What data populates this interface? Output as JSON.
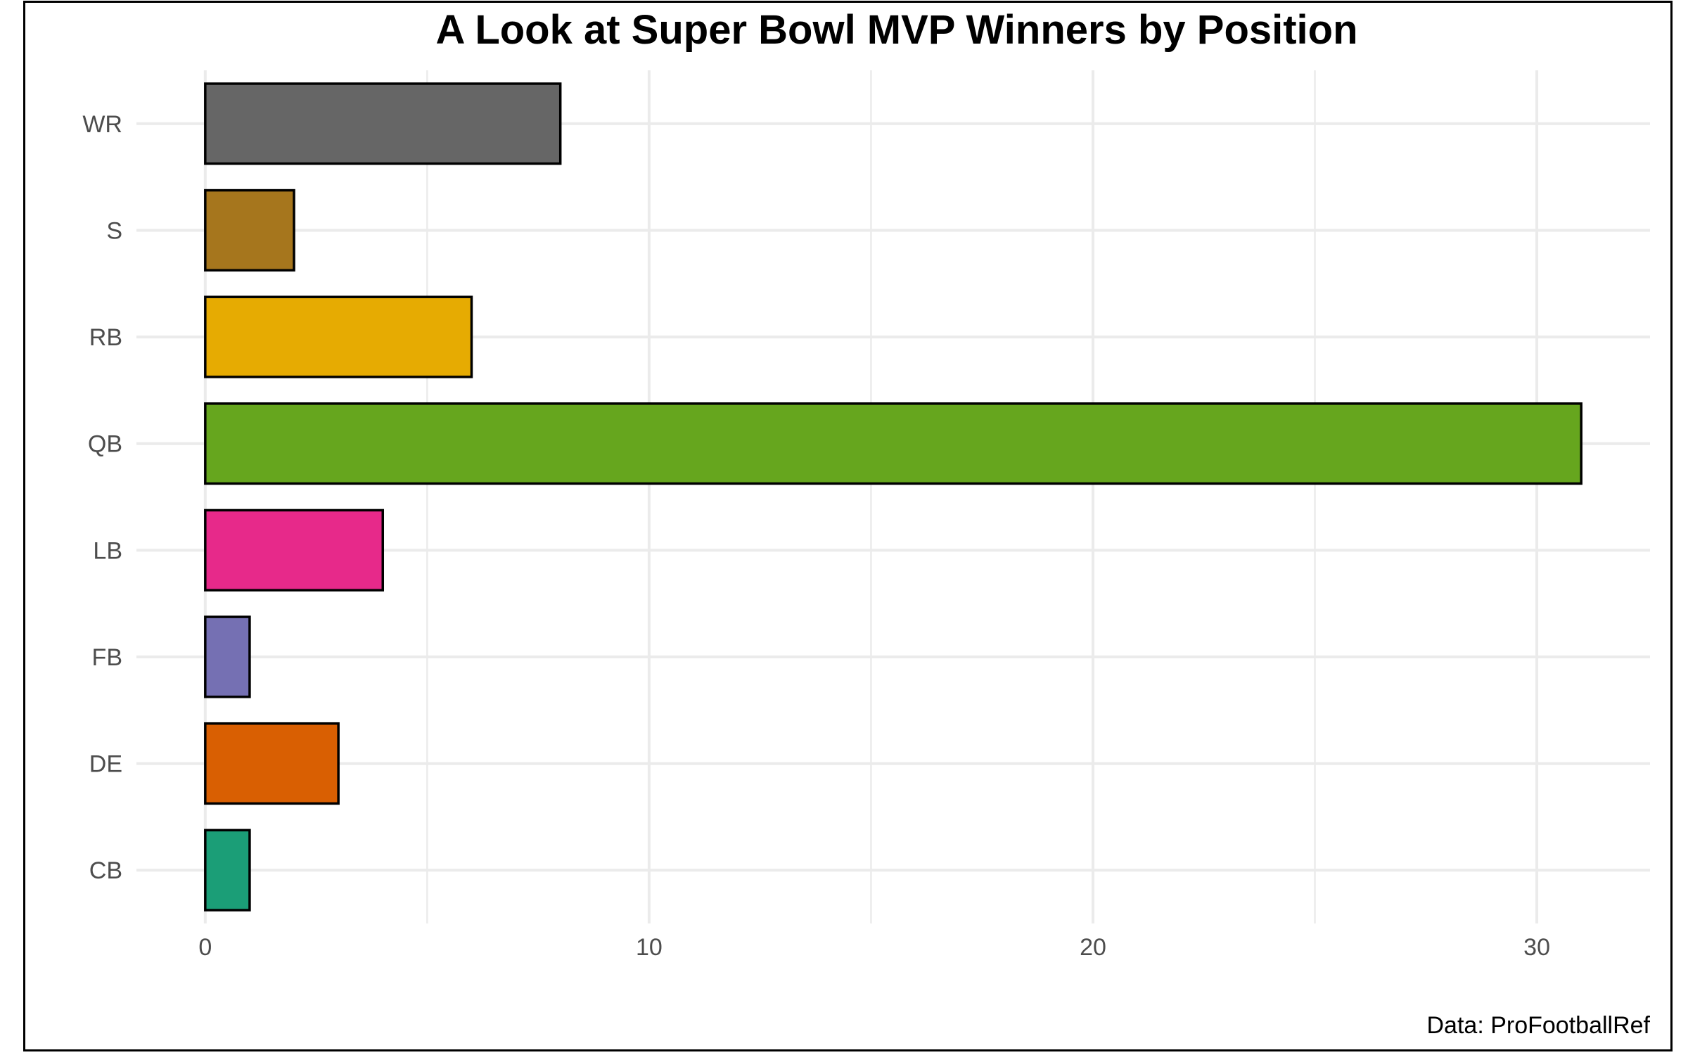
{
  "chart_data": {
    "type": "bar",
    "orientation": "horizontal",
    "title": "A Look at Super Bowl MVP Winners by Position",
    "caption": "Data: ProFootballRef",
    "xlabel": "",
    "ylabel": "",
    "categories": [
      "CB",
      "DE",
      "FB",
      "LB",
      "QB",
      "RB",
      "S",
      "WR"
    ],
    "values": [
      1,
      3,
      1,
      4,
      31,
      6,
      2,
      8
    ],
    "colors": [
      "#1B9E77",
      "#D95F02",
      "#7570B3",
      "#E7298A",
      "#66A61E",
      "#E6AB02",
      "#A6761D",
      "#666666"
    ],
    "xlim": [
      -1.55,
      32.55
    ],
    "x_ticks": [
      0,
      10,
      20,
      30
    ],
    "x_minor_ticks": [
      5,
      15,
      25
    ],
    "grid": true,
    "legend": "none"
  }
}
